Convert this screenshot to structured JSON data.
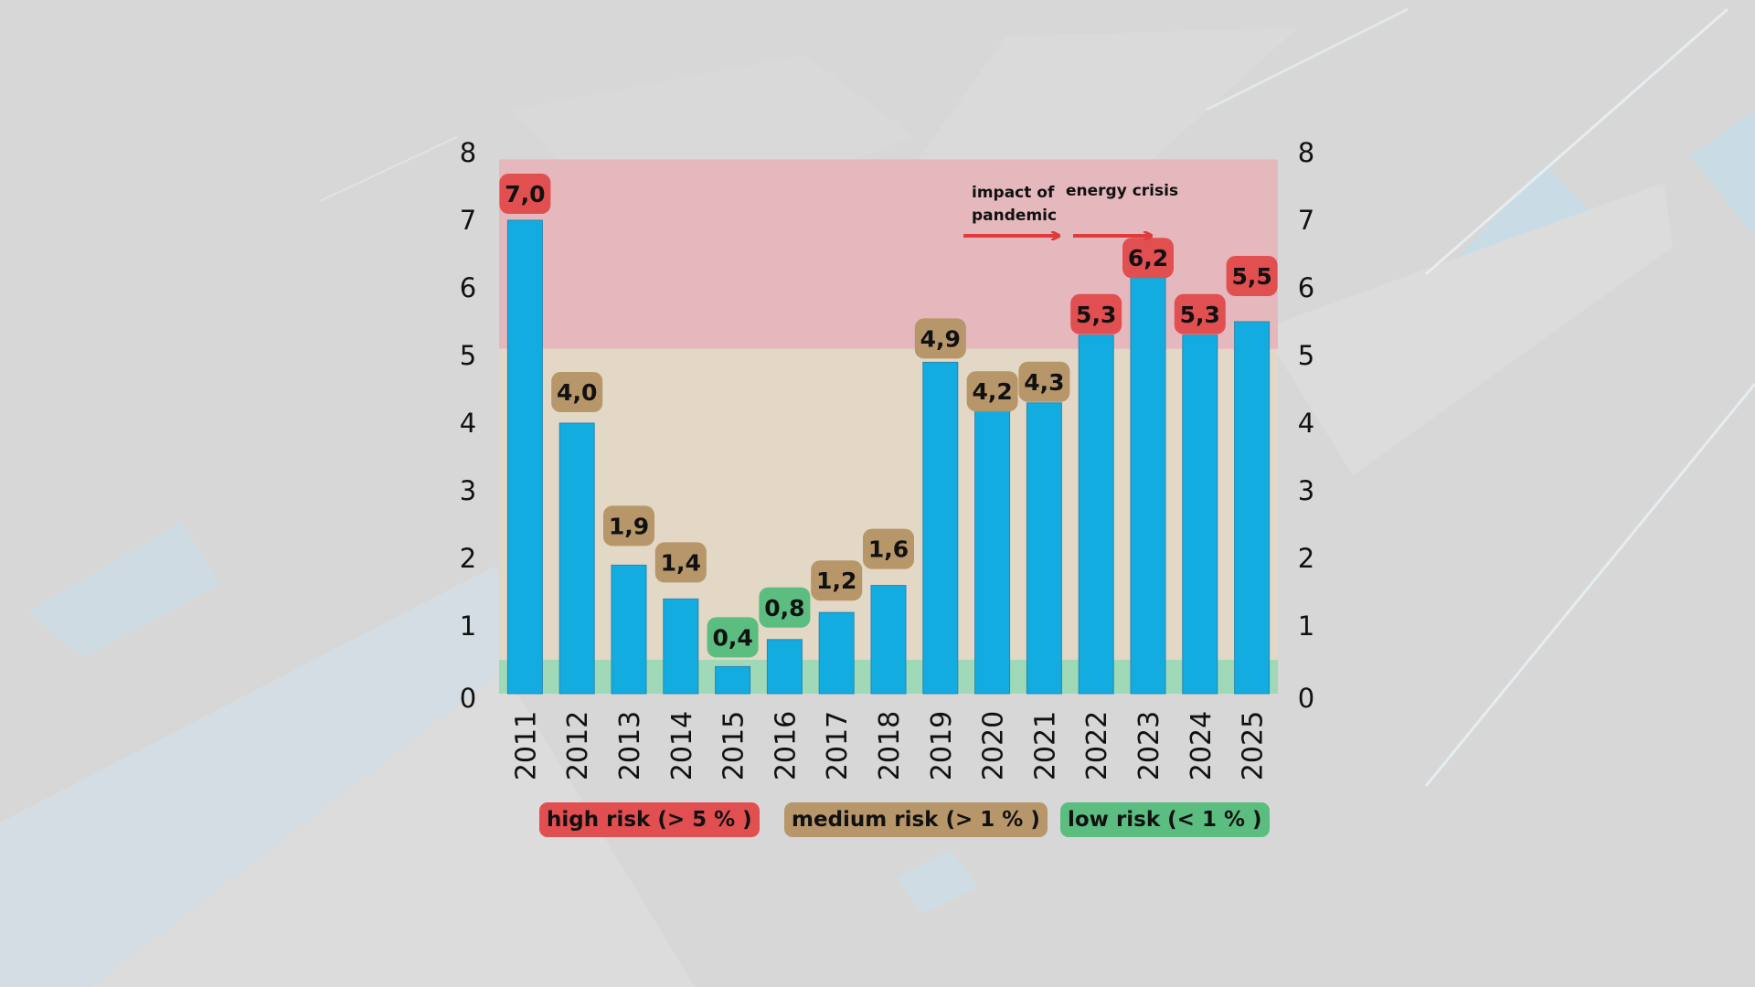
{
  "chart_data": {
    "type": "bar",
    "categories": [
      "2011",
      "2012",
      "2013",
      "2014",
      "2015",
      "2016",
      "2017",
      "2018",
      "2019",
      "2020",
      "2021",
      "2022",
      "2023",
      "2024",
      "2025"
    ],
    "values": [
      7.0,
      4.0,
      1.9,
      1.4,
      0.4,
      0.8,
      1.2,
      1.6,
      4.9,
      4.2,
      4.3,
      5.3,
      6.2,
      5.3,
      5.5
    ],
    "data_labels": [
      "7,0",
      "4,0",
      "1,9",
      "1,4",
      "0,4",
      "0,8",
      "1,2",
      "1,6",
      "4,9",
      "4,2",
      "4,3",
      "5,3",
      "6,2",
      "5,3",
      "5,5"
    ],
    "ylim": [
      0,
      8
    ],
    "yticks": [
      "0",
      "1",
      "2",
      "3",
      "4",
      "5",
      "6",
      "7",
      "8"
    ],
    "bar_color": "#12ace0",
    "risk_bands": [
      {
        "name": "low",
        "from": 0,
        "to": 0.5,
        "color": "#9fd9b8"
      },
      {
        "name": "medium",
        "from": 0.5,
        "to": 5.1,
        "color": "#e3d7c6"
      },
      {
        "name": "high",
        "from": 5.1,
        "to": 7.9,
        "color": "#e5b8bd"
      }
    ],
    "label_colors": {
      "high": "#e24f51",
      "medium": "#b7966a",
      "low": "#5bbd80"
    },
    "annotations": [
      {
        "text_lines": [
          "impact of",
          "pandemic"
        ],
        "arrow_from": 19.1,
        "arrow_to": 20.5
      },
      {
        "text_lines": [
          "energy crisis"
        ],
        "arrow_from": 20.6,
        "arrow_to": 21.5
      }
    ],
    "legend": [
      {
        "label": "high risk (> 5 % )",
        "color": "#e24f51"
      },
      {
        "label": "medium risk (> 1 % )",
        "color": "#b7966a"
      },
      {
        "label": "low risk (< 1 % )",
        "color": "#5bbd80"
      }
    ],
    "title": "",
    "xlabel": "",
    "ylabel": ""
  }
}
